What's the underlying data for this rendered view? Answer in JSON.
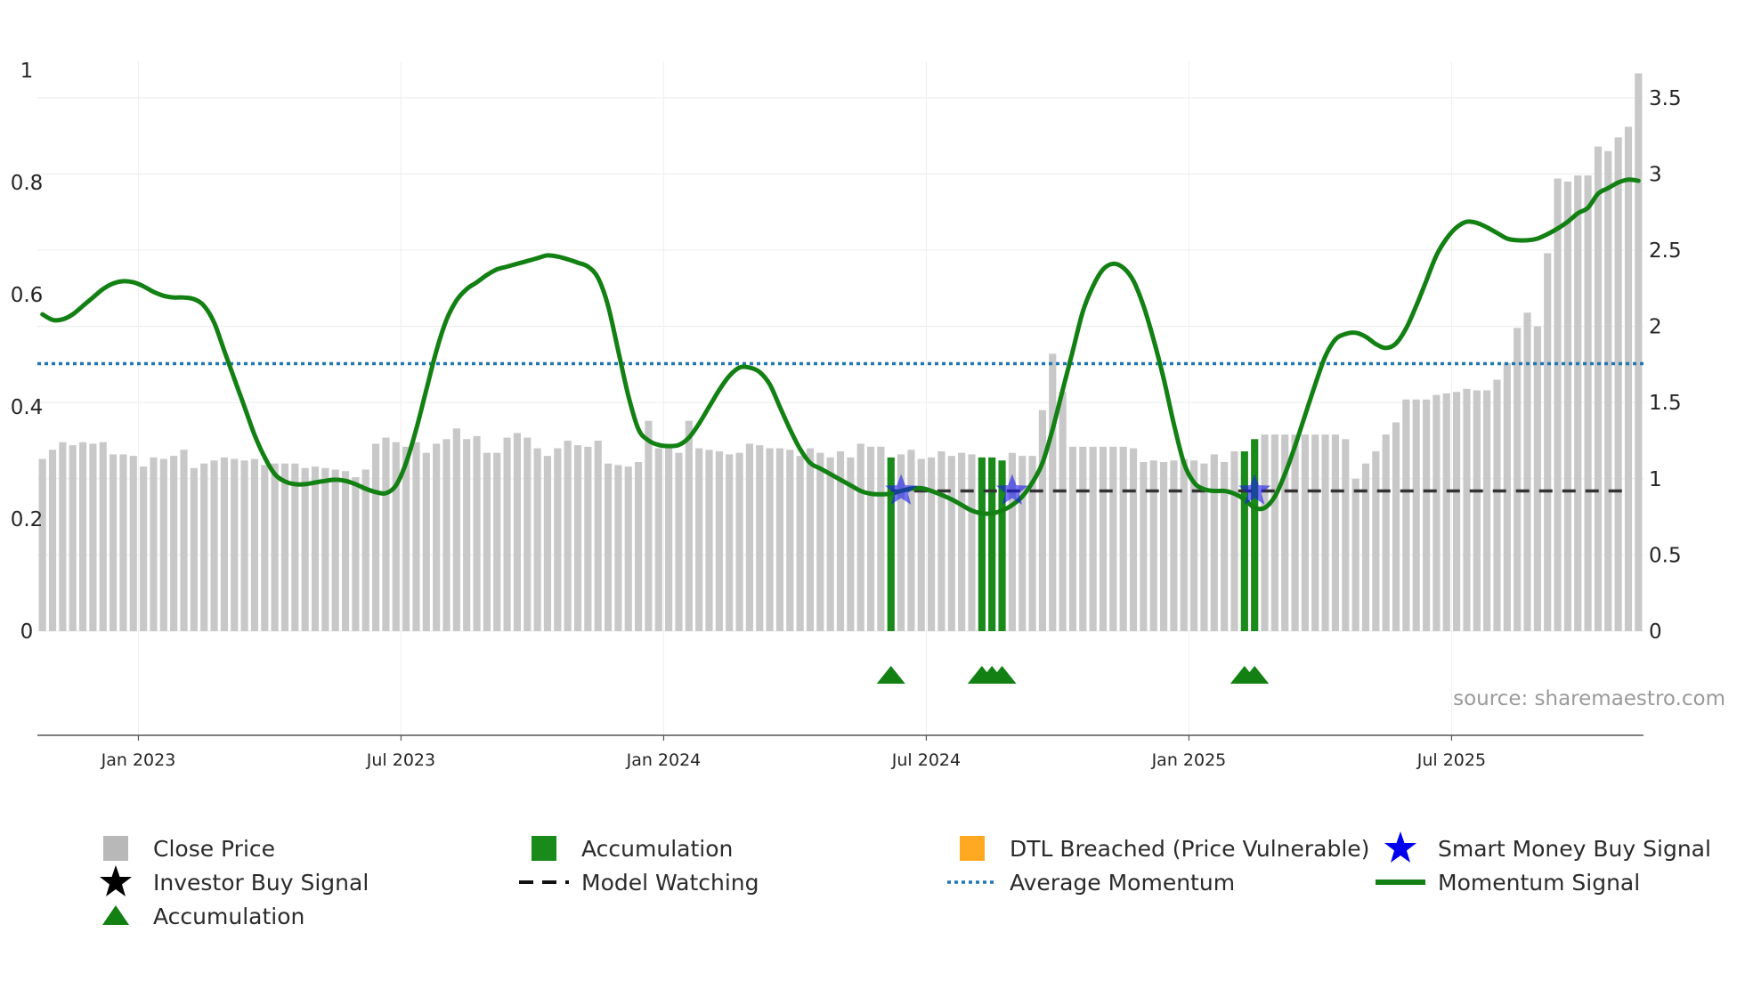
{
  "chart_data": {
    "type": "bar+line",
    "title": "",
    "xlabel": "",
    "left_axis": {
      "ylim": [
        0,
        1
      ],
      "ticks": [
        "0",
        "0.2",
        "0.4",
        "0.6",
        "0.8",
        "1"
      ]
    },
    "right_axis": {
      "ylim": [
        0,
        3.68
      ],
      "ticks": [
        "0",
        "0.5",
        "1",
        "1.5",
        "2",
        "2.5",
        "3",
        "3.5"
      ]
    },
    "x_tick_labels": [
      "Jan 2023",
      "Jul 2023",
      "Jan 2024",
      "Jul 2024",
      "Jan 2025",
      "Jul 2025"
    ],
    "x_tick_weeks": [
      9.5,
      35.5,
      61.5,
      87.5,
      113.5,
      139.5
    ],
    "close_price": [
      1.13,
      1.19,
      1.24,
      1.22,
      1.24,
      1.23,
      1.24,
      1.16,
      1.16,
      1.15,
      1.08,
      1.14,
      1.13,
      1.15,
      1.19,
      1.07,
      1.1,
      1.12,
      1.14,
      1.13,
      1.12,
      1.13,
      1.09,
      1.1,
      1.1,
      1.1,
      1.07,
      1.08,
      1.07,
      1.06,
      1.05,
      1.01,
      1.06,
      1.23,
      1.27,
      1.24,
      1.21,
      1.24,
      1.17,
      1.23,
      1.26,
      1.33,
      1.26,
      1.28,
      1.17,
      1.17,
      1.27,
      1.3,
      1.27,
      1.2,
      1.15,
      1.2,
      1.25,
      1.22,
      1.21,
      1.25,
      1.1,
      1.09,
      1.08,
      1.11,
      1.38,
      1.2,
      1.22,
      1.17,
      1.38,
      1.2,
      1.19,
      1.18,
      1.16,
      1.17,
      1.23,
      1.22,
      1.2,
      1.2,
      1.19,
      1.15,
      1.2,
      1.17,
      1.14,
      1.18,
      1.14,
      1.23,
      1.21,
      1.21,
      1.14,
      1.16,
      1.19,
      1.13,
      1.14,
      1.18,
      1.15,
      1.17,
      1.16,
      1.14,
      1.14,
      1.12,
      1.17,
      1.15,
      1.15,
      1.45,
      1.82,
      1.57,
      1.21,
      1.21,
      1.21,
      1.21,
      1.21,
      1.21,
      1.2,
      1.11,
      1.12,
      1.11,
      1.12,
      1.13,
      1.12,
      1.1,
      1.16,
      1.11,
      1.18,
      1.18,
      1.26,
      1.29,
      1.29,
      1.29,
      1.29,
      1.29,
      1.29,
      1.29,
      1.29,
      1.26,
      1.0,
      1.1,
      1.18,
      1.29,
      1.37,
      1.52,
      1.52,
      1.52,
      1.55,
      1.56,
      1.57,
      1.59,
      1.58,
      1.58,
      1.65,
      1.76,
      1.99,
      2.09,
      2.0,
      2.48,
      2.97,
      2.95,
      2.99,
      2.99,
      3.18,
      3.15,
      3.24,
      3.31,
      3.66
    ],
    "accumulation_weeks": [
      84,
      93,
      94,
      95,
      119,
      120
    ],
    "smart_money_buy_signal_weeks": [
      85,
      96,
      120
    ],
    "model_watching_level": 0.25,
    "model_watching_start_week": 84,
    "average_momentum": 0.477,
    "momentum_signal": [
      [
        0,
        0.565
      ],
      [
        1,
        0.555
      ],
      [
        2,
        0.556
      ],
      [
        3,
        0.565
      ],
      [
        4,
        0.58
      ],
      [
        5,
        0.595
      ],
      [
        6,
        0.61
      ],
      [
        7,
        0.62
      ],
      [
        8,
        0.624
      ],
      [
        9,
        0.622
      ],
      [
        10,
        0.615
      ],
      [
        11,
        0.605
      ],
      [
        12,
        0.598
      ],
      [
        13,
        0.595
      ],
      [
        14,
        0.595
      ],
      [
        15,
        0.592
      ],
      [
        16,
        0.58
      ],
      [
        17,
        0.55
      ],
      [
        18,
        0.5
      ],
      [
        19,
        0.45
      ],
      [
        20,
        0.4
      ],
      [
        21,
        0.35
      ],
      [
        22,
        0.31
      ],
      [
        23,
        0.28
      ],
      [
        24,
        0.267
      ],
      [
        25,
        0.262
      ],
      [
        26,
        0.262
      ],
      [
        27,
        0.265
      ],
      [
        28,
        0.268
      ],
      [
        29,
        0.27
      ],
      [
        30,
        0.268
      ],
      [
        31,
        0.262
      ],
      [
        32,
        0.254
      ],
      [
        33,
        0.248
      ],
      [
        34,
        0.246
      ],
      [
        35,
        0.26
      ],
      [
        36,
        0.3
      ],
      [
        37,
        0.36
      ],
      [
        38,
        0.43
      ],
      [
        39,
        0.5
      ],
      [
        40,
        0.555
      ],
      [
        41,
        0.59
      ],
      [
        42,
        0.61
      ],
      [
        43,
        0.622
      ],
      [
        44,
        0.635
      ],
      [
        45,
        0.645
      ],
      [
        46,
        0.65
      ],
      [
        47,
        0.655
      ],
      [
        48,
        0.66
      ],
      [
        49,
        0.665
      ],
      [
        50,
        0.67
      ],
      [
        51,
        0.668
      ],
      [
        52,
        0.663
      ],
      [
        53,
        0.657
      ],
      [
        54,
        0.65
      ],
      [
        55,
        0.63
      ],
      [
        56,
        0.58
      ],
      [
        57,
        0.5
      ],
      [
        58,
        0.42
      ],
      [
        59,
        0.36
      ],
      [
        60,
        0.34
      ],
      [
        61,
        0.332
      ],
      [
        62,
        0.33
      ],
      [
        63,
        0.332
      ],
      [
        64,
        0.345
      ],
      [
        65,
        0.37
      ],
      [
        66,
        0.4
      ],
      [
        67,
        0.43
      ],
      [
        68,
        0.455
      ],
      [
        69,
        0.47
      ],
      [
        70,
        0.47
      ],
      [
        71,
        0.462
      ],
      [
        72,
        0.44
      ],
      [
        73,
        0.4
      ],
      [
        74,
        0.36
      ],
      [
        75,
        0.325
      ],
      [
        76,
        0.3
      ],
      [
        77,
        0.29
      ],
      [
        78,
        0.28
      ],
      [
        79,
        0.27
      ],
      [
        80,
        0.26
      ],
      [
        81,
        0.25
      ],
      [
        82,
        0.245
      ],
      [
        83,
        0.244
      ],
      [
        84,
        0.245
      ],
      [
        85,
        0.25
      ],
      [
        86,
        0.254
      ],
      [
        87,
        0.255
      ],
      [
        88,
        0.25
      ],
      [
        89,
        0.243
      ],
      [
        90,
        0.235
      ],
      [
        91,
        0.225
      ],
      [
        92,
        0.215
      ],
      [
        93,
        0.21
      ],
      [
        94,
        0.21
      ],
      [
        95,
        0.215
      ],
      [
        96,
        0.225
      ],
      [
        97,
        0.24
      ],
      [
        98,
        0.265
      ],
      [
        99,
        0.3
      ],
      [
        100,
        0.36
      ],
      [
        101,
        0.43
      ],
      [
        102,
        0.5
      ],
      [
        103,
        0.57
      ],
      [
        104,
        0.615
      ],
      [
        105,
        0.645
      ],
      [
        106,
        0.655
      ],
      [
        107,
        0.648
      ],
      [
        108,
        0.625
      ],
      [
        109,
        0.58
      ],
      [
        110,
        0.52
      ],
      [
        111,
        0.45
      ],
      [
        112,
        0.37
      ],
      [
        113,
        0.3
      ],
      [
        114,
        0.265
      ],
      [
        115,
        0.253
      ],
      [
        116,
        0.25
      ],
      [
        117,
        0.25
      ],
      [
        118,
        0.245
      ],
      [
        119,
        0.235
      ],
      [
        120,
        0.22
      ],
      [
        121,
        0.22
      ],
      [
        122,
        0.24
      ],
      [
        123,
        0.28
      ],
      [
        124,
        0.33
      ],
      [
        125,
        0.385
      ],
      [
        126,
        0.44
      ],
      [
        127,
        0.49
      ],
      [
        128,
        0.52
      ],
      [
        129,
        0.53
      ],
      [
        130,
        0.532
      ],
      [
        131,
        0.525
      ],
      [
        132,
        0.512
      ],
      [
        133,
        0.505
      ],
      [
        134,
        0.513
      ],
      [
        135,
        0.54
      ],
      [
        136,
        0.58
      ],
      [
        137,
        0.625
      ],
      [
        138,
        0.67
      ],
      [
        139,
        0.7
      ],
      [
        140,
        0.72
      ],
      [
        141,
        0.73
      ],
      [
        142,
        0.728
      ],
      [
        143,
        0.72
      ],
      [
        144,
        0.71
      ],
      [
        145,
        0.7
      ],
      [
        146,
        0.697
      ],
      [
        147,
        0.697
      ],
      [
        148,
        0.7
      ],
      [
        149,
        0.708
      ],
      [
        150,
        0.718
      ],
      [
        151,
        0.73
      ],
      [
        152,
        0.745
      ],
      [
        153,
        0.755
      ],
      [
        154,
        0.78
      ],
      [
        155,
        0.79
      ],
      [
        156,
        0.8
      ],
      [
        157,
        0.805
      ],
      [
        158,
        0.803
      ]
    ],
    "legend": [
      {
        "label": "Close Price",
        "icon": "square",
        "color": "#b8b8b8"
      },
      {
        "label": "Accumulation",
        "icon": "square",
        "color": "#1a8a1a"
      },
      {
        "label": "DTL Breached (Price Vulnerable)",
        "icon": "square",
        "color": "#ffa922"
      },
      {
        "label": "Smart Money Buy Signal",
        "icon": "star",
        "color": "#0000ee"
      },
      {
        "label": "Investor Buy Signal",
        "icon": "star",
        "color": "#000000"
      },
      {
        "label": "Model Watching",
        "icon": "dash",
        "color": "#111111"
      },
      {
        "label": "Average Momentum",
        "icon": "dotted",
        "color": "#1f77b4"
      },
      {
        "label": "Momentum Signal",
        "icon": "line",
        "color": "#128012"
      },
      {
        "label": "Accumulation",
        "icon": "triangle",
        "color": "#128012"
      }
    ],
    "source": "source: sharemaestro.com"
  }
}
